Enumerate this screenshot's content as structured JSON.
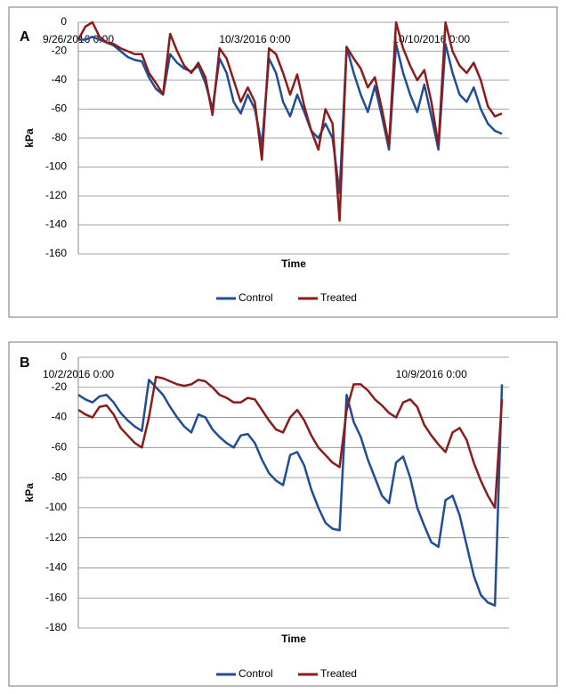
{
  "chart_data": [
    {
      "type": "line",
      "label": "A",
      "ylabel": "kPa",
      "xlabel": "Time",
      "categories": [
        "9/26/2016 0:00",
        null,
        null,
        null,
        null,
        null,
        null,
        null,
        null,
        null,
        null,
        null,
        null,
        null,
        null,
        null,
        null,
        null,
        null,
        null,
        null,
        null,
        null,
        null,
        null,
        "10/3/2016 0:00",
        null,
        null,
        null,
        null,
        null,
        null,
        null,
        null,
        null,
        null,
        null,
        null,
        null,
        null,
        null,
        null,
        null,
        null,
        null,
        null,
        null,
        null,
        null,
        null,
        "10/10/2016 0:00",
        null,
        null,
        null,
        null,
        null,
        null,
        null,
        null,
        null,
        null
      ],
      "series": [
        {
          "name": "Control",
          "color": "#1f4e96",
          "values": [
            -12,
            -12,
            -10,
            -12,
            -14,
            -16,
            -20,
            -24,
            -26,
            -27,
            -38,
            -46,
            -50,
            -22,
            -28,
            -32,
            -34,
            -30,
            -42,
            -60,
            -25,
            -35,
            -55,
            -63,
            -50,
            -60,
            -85,
            -25,
            -35,
            -55,
            -65,
            -50,
            -62,
            -75,
            -80,
            -70,
            -80,
            -118,
            -17,
            -35,
            -50,
            -62,
            -44,
            -65,
            -88,
            -15,
            -35,
            -50,
            -62,
            -43,
            -65,
            -88,
            -15,
            -35,
            -50,
            -55,
            -45,
            -60,
            -70,
            -75,
            -77
          ]
        },
        {
          "name": "Treated",
          "color": "#8b1c1c",
          "values": [
            -12,
            -3,
            0,
            -10,
            -14,
            -15,
            -18,
            -20,
            -22,
            -22,
            -35,
            -42,
            -50,
            -8,
            -20,
            -30,
            -35,
            -28,
            -38,
            -64,
            -18,
            -25,
            -40,
            -55,
            -45,
            -55,
            -95,
            -18,
            -22,
            -35,
            -50,
            -36,
            -58,
            -75,
            -88,
            -60,
            -70,
            -137,
            -17,
            -25,
            -32,
            -45,
            -38,
            -60,
            -85,
            0,
            -18,
            -30,
            -40,
            -33,
            -55,
            -85,
            0,
            -20,
            -30,
            -35,
            -28,
            -40,
            -58,
            -65,
            -63
          ]
        }
      ],
      "ylim": [
        -160,
        0
      ],
      "yticks": [
        0,
        -20,
        -40,
        -60,
        -80,
        -100,
        -120,
        -140,
        -160
      ],
      "grid": true
    },
    {
      "type": "line",
      "label": "B",
      "ylabel": "kPa",
      "xlabel": "Time",
      "categories": [
        "10/2/2016 0:00",
        null,
        null,
        null,
        null,
        null,
        null,
        null,
        null,
        null,
        null,
        null,
        null,
        null,
        null,
        null,
        null,
        null,
        null,
        null,
        null,
        null,
        null,
        null,
        null,
        null,
        null,
        null,
        null,
        null,
        null,
        null,
        null,
        null,
        null,
        null,
        null,
        null,
        null,
        null,
        null,
        null,
        null,
        null,
        null,
        null,
        null,
        null,
        null,
        null,
        "10/9/2016 0:00",
        null,
        null,
        null,
        null,
        null,
        null,
        null,
        null,
        null,
        null
      ],
      "series": [
        {
          "name": "Control",
          "color": "#1f4e96",
          "values": [
            -25,
            -28,
            -30,
            -26,
            -25,
            -30,
            -37,
            -42,
            -46,
            -49,
            -15,
            -20,
            -25,
            -33,
            -40,
            -46,
            -50,
            -38,
            -40,
            -48,
            -53,
            -57,
            -60,
            -52,
            -51,
            -57,
            -68,
            -77,
            -82,
            -85,
            -65,
            -63,
            -72,
            -88,
            -100,
            -110,
            -114,
            -115,
            -25,
            -43,
            -53,
            -68,
            -80,
            -92,
            -97,
            -70,
            -66,
            -80,
            -100,
            -112,
            -123,
            -126,
            -95,
            -92,
            -105,
            -125,
            -145,
            -158,
            -163,
            -165,
            -18
          ]
        },
        {
          "name": "Treated",
          "color": "#8b1c1c",
          "values": [
            -35,
            -38,
            -40,
            -33,
            -32,
            -38,
            -47,
            -52,
            -57,
            -60,
            -40,
            -13,
            -14,
            -16,
            -18,
            -19,
            -18,
            -15,
            -16,
            -20,
            -25,
            -27,
            -30,
            -30,
            -27,
            -28,
            -35,
            -42,
            -48,
            -50,
            -40,
            -35,
            -42,
            -52,
            -60,
            -65,
            -70,
            -73,
            -35,
            -18,
            -18,
            -22,
            -28,
            -32,
            -37,
            -40,
            -30,
            -28,
            -33,
            -45,
            -52,
            -58,
            -63,
            -50,
            -47,
            -55,
            -70,
            -82,
            -92,
            -100,
            -28
          ]
        }
      ],
      "ylim": [
        -180,
        0
      ],
      "yticks": [
        0,
        -20,
        -40,
        -60,
        -80,
        -100,
        -120,
        -140,
        -160,
        -180
      ],
      "grid": true
    }
  ]
}
